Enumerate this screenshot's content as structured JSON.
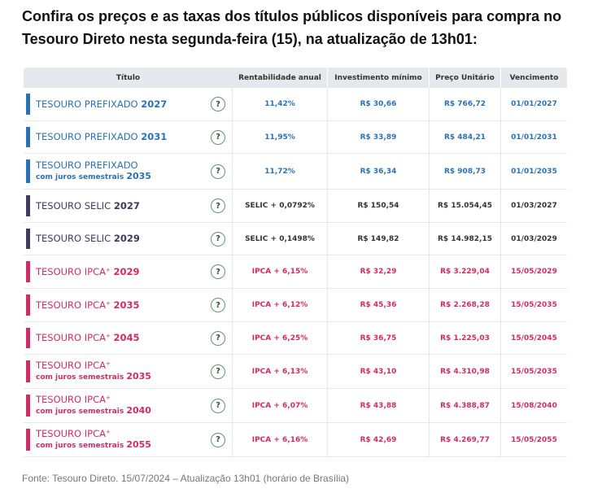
{
  "headline": "Confira os preços e as taxas dos títulos públicos disponíveis para compra no Tesouro Direto nesta segunda-feira (15), na atualização de 13h01:",
  "colors": {
    "prefixado": "#2a72b5",
    "selic": "#3f3a5e",
    "ipca": "#d12c62",
    "text_dark": "#333333",
    "help_border": "#5a9b6a"
  },
  "table": {
    "headers": {
      "title": "Título",
      "rate": "Rentabilidade anual",
      "min": "Investimento mínimo",
      "price": "Preço Unitário",
      "maturity": "Vencimento"
    },
    "help_icon": "question-circle-icon",
    "rows": [
      {
        "name": "TESOURO PREFIXADO",
        "year": "2027",
        "sub": "",
        "sup": "",
        "group": "prefixado",
        "rate": "11,42%",
        "min": "R$ 30,66",
        "price": "R$ 766,72",
        "maturity": "01/01/2027"
      },
      {
        "name": "TESOURO PREFIXADO",
        "year": "2031",
        "sub": "",
        "sup": "",
        "group": "prefixado",
        "rate": "11,95%",
        "min": "R$ 33,89",
        "price": "R$ 484,21",
        "maturity": "01/01/2031"
      },
      {
        "name": "TESOURO PREFIXADO",
        "year": "2035",
        "sub": "com juros semestrais",
        "sup": "",
        "group": "prefixado",
        "rate": "11,72%",
        "min": "R$ 36,34",
        "price": "R$ 908,73",
        "maturity": "01/01/2035"
      },
      {
        "name": "TESOURO SELIC",
        "year": "2027",
        "sub": "",
        "sup": "",
        "group": "selic",
        "rate": "SELIC + 0,0792%",
        "min": "R$ 150,54",
        "price": "R$ 15.054,45",
        "maturity": "01/03/2027"
      },
      {
        "name": "TESOURO SELIC",
        "year": "2029",
        "sub": "",
        "sup": "",
        "group": "selic",
        "rate": "SELIC + 0,1498%",
        "min": "R$ 149,82",
        "price": "R$ 14.982,15",
        "maturity": "01/03/2029"
      },
      {
        "name": "TESOURO IPCA",
        "year": "2029",
        "sub": "",
        "sup": "+",
        "group": "ipca",
        "rate": "IPCA + 6,15%",
        "min": "R$ 32,29",
        "price": "R$ 3.229,04",
        "maturity": "15/05/2029"
      },
      {
        "name": "TESOURO IPCA",
        "year": "2035",
        "sub": "",
        "sup": "+",
        "group": "ipca",
        "rate": "IPCA + 6,12%",
        "min": "R$ 45,36",
        "price": "R$ 2.268,28",
        "maturity": "15/05/2035"
      },
      {
        "name": "TESOURO IPCA",
        "year": "2045",
        "sub": "",
        "sup": "+",
        "group": "ipca",
        "rate": "IPCA + 6,25%",
        "min": "R$ 36,75",
        "price": "R$ 1.225,03",
        "maturity": "15/05/2045"
      },
      {
        "name": "TESOURO IPCA",
        "year": "2035",
        "sub": "com juros semestrais",
        "sup": "+",
        "group": "ipca",
        "rate": "IPCA + 6,13%",
        "min": "R$ 43,10",
        "price": "R$ 4.310,98",
        "maturity": "15/05/2035"
      },
      {
        "name": "TESOURO IPCA",
        "year": "2040",
        "sub": "com juros semestrais",
        "sup": "+",
        "group": "ipca",
        "rate": "IPCA + 6,07%",
        "min": "R$ 43,88",
        "price": "R$ 4.388,87",
        "maturity": "15/08/2040"
      },
      {
        "name": "TESOURO IPCA",
        "year": "2055",
        "sub": "com juros semestrais",
        "sup": "+",
        "group": "ipca",
        "rate": "IPCA + 6,16%",
        "min": "R$ 42,69",
        "price": "R$ 4.269,77",
        "maturity": "15/05/2055"
      }
    ]
  },
  "source": "Fonte: Tesouro Direto. 15/07/2024 – Atualização 13h01 (horário de Brasília)"
}
